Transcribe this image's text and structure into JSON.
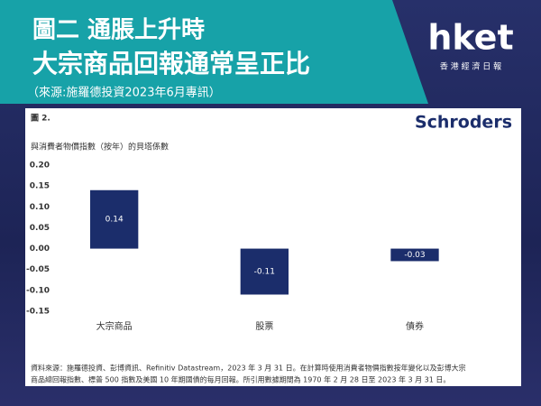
{
  "header": {
    "title_line1": "圖二 通脹上升時",
    "title_line2": "大宗商品回報通常呈正比",
    "subtitle": "（來源:施羅德投資2023年6月專訊）",
    "logo": "hket",
    "logo_sub": "香 港 經 濟 日 報"
  },
  "chart_data": {
    "type": "bar",
    "figure_label": "圖 2.",
    "brand": "Schroders",
    "y_label": "與消費者物價指數（按年）的貝塔係數",
    "categories": [
      "大宗商品",
      "股票",
      "債券"
    ],
    "values": [
      0.14,
      -0.11,
      -0.03
    ],
    "color": "#1b2d6b",
    "ylim": [
      -0.15,
      0.2
    ],
    "yticks": [
      {
        "value": 0.2,
        "label": "0.20"
      },
      0.15,
      {
        "value": 0.1,
        "label": "0.10"
      },
      {
        "value": 0.05,
        "label": "0.05"
      },
      {
        "value": 0,
        "label": "0.00"
      },
      {
        "value": -0.05,
        "label": "-0.05"
      },
      {
        "value": -0.1,
        "label": "-0.10"
      },
      -0.15
    ],
    "grid": false,
    "note": [
      "資料來源：施羅德投資、彭博資訊、Refinitiv Datastream，2023 年 3 月 31 日。在計算時使用消費者物價指數按年變化以及彭博大宗",
      "商品總回報指數、標普 500 指數及美國 10 年期國債的每月回報。所引用數據期間為 1970 年 2 月 28 日至 2023 年 3 月 31 日。"
    ]
  }
}
